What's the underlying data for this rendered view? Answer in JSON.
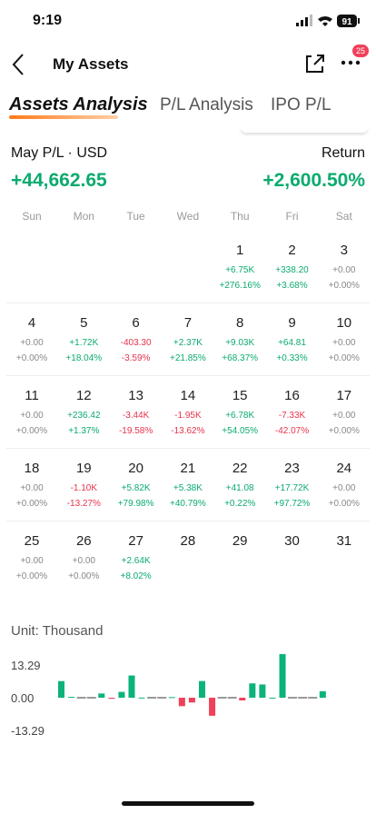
{
  "status": {
    "time": "9:19",
    "battery": "91"
  },
  "header": {
    "title": "My Assets",
    "badge": "25"
  },
  "tabs": [
    "Assets Analysis",
    "P/L Analysis",
    "IPO P/L"
  ],
  "summary": {
    "period": "May P/L · USD",
    "pl": "+44,662.65",
    "return_label": "Return",
    "return": "+2,600.50%"
  },
  "weekdays": [
    "Sun",
    "Mon",
    "Tue",
    "Wed",
    "Thu",
    "Fri",
    "Sat"
  ],
  "days": [
    {
      "day": "1",
      "pl": "+6.75K",
      "ret": "+276.16%"
    },
    {
      "day": "2",
      "pl": "+338.20",
      "ret": "+3.68%"
    },
    {
      "day": "3",
      "pl": "+0.00",
      "ret": "+0.00%"
    },
    {
      "day": "4",
      "pl": "+0.00",
      "ret": "+0.00%"
    },
    {
      "day": "5",
      "pl": "+1.72K",
      "ret": "+18.04%"
    },
    {
      "day": "6",
      "pl": "-403.30",
      "ret": "-3.59%"
    },
    {
      "day": "7",
      "pl": "+2.37K",
      "ret": "+21.85%"
    },
    {
      "day": "8",
      "pl": "+9.03K",
      "ret": "+68.37%"
    },
    {
      "day": "9",
      "pl": "+64.81",
      "ret": "+0.33%"
    },
    {
      "day": "10",
      "pl": "+0.00",
      "ret": "+0.00%"
    },
    {
      "day": "11",
      "pl": "+0.00",
      "ret": "+0.00%"
    },
    {
      "day": "12",
      "pl": "+236.42",
      "ret": "+1.37%"
    },
    {
      "day": "13",
      "pl": "-3.44K",
      "ret": "-19.58%"
    },
    {
      "day": "14",
      "pl": "-1.95K",
      "ret": "-13.62%"
    },
    {
      "day": "15",
      "pl": "+6.78K",
      "ret": "+54.05%"
    },
    {
      "day": "16",
      "pl": "-7.33K",
      "ret": "-42.07%"
    },
    {
      "day": "17",
      "pl": "+0.00",
      "ret": "+0.00%"
    },
    {
      "day": "18",
      "pl": "+0.00",
      "ret": "+0.00%"
    },
    {
      "day": "19",
      "pl": "-1.10K",
      "ret": "-13.27%"
    },
    {
      "day": "20",
      "pl": "+5.82K",
      "ret": "+79.98%"
    },
    {
      "day": "21",
      "pl": "+5.38K",
      "ret": "+40.79%"
    },
    {
      "day": "22",
      "pl": "+41.08",
      "ret": "+0.22%"
    },
    {
      "day": "23",
      "pl": "+17.72K",
      "ret": "+97.72%"
    },
    {
      "day": "24",
      "pl": "+0.00",
      "ret": "+0.00%"
    },
    {
      "day": "25",
      "pl": "+0.00",
      "ret": "+0.00%"
    },
    {
      "day": "26",
      "pl": "+0.00",
      "ret": "+0.00%"
    },
    {
      "day": "27",
      "pl": "+2.64K",
      "ret": "+8.02%"
    },
    {
      "day": "28"
    },
    {
      "day": "29"
    },
    {
      "day": "30"
    },
    {
      "day": "31"
    }
  ],
  "chart_data": {
    "type": "bar",
    "title": "Unit: Thousand",
    "values": [
      6.75,
      0.3382,
      0,
      0,
      1.72,
      -0.4033,
      2.37,
      9.03,
      0.06481,
      0,
      0,
      0.23642,
      -3.44,
      -1.95,
      6.78,
      -7.33,
      0,
      0,
      -1.1,
      5.82,
      5.38,
      0.04108,
      17.72,
      0,
      0,
      0,
      2.64
    ],
    "positive_color": "#0bb37a",
    "negative_color": "#f0405a",
    "zero_color": "#333333",
    "ylim": [
      -17.72,
      17.72
    ],
    "yticks": [
      13.29,
      {
        "value": 0,
        "label": "0.00"
      },
      -13.29
    ]
  }
}
